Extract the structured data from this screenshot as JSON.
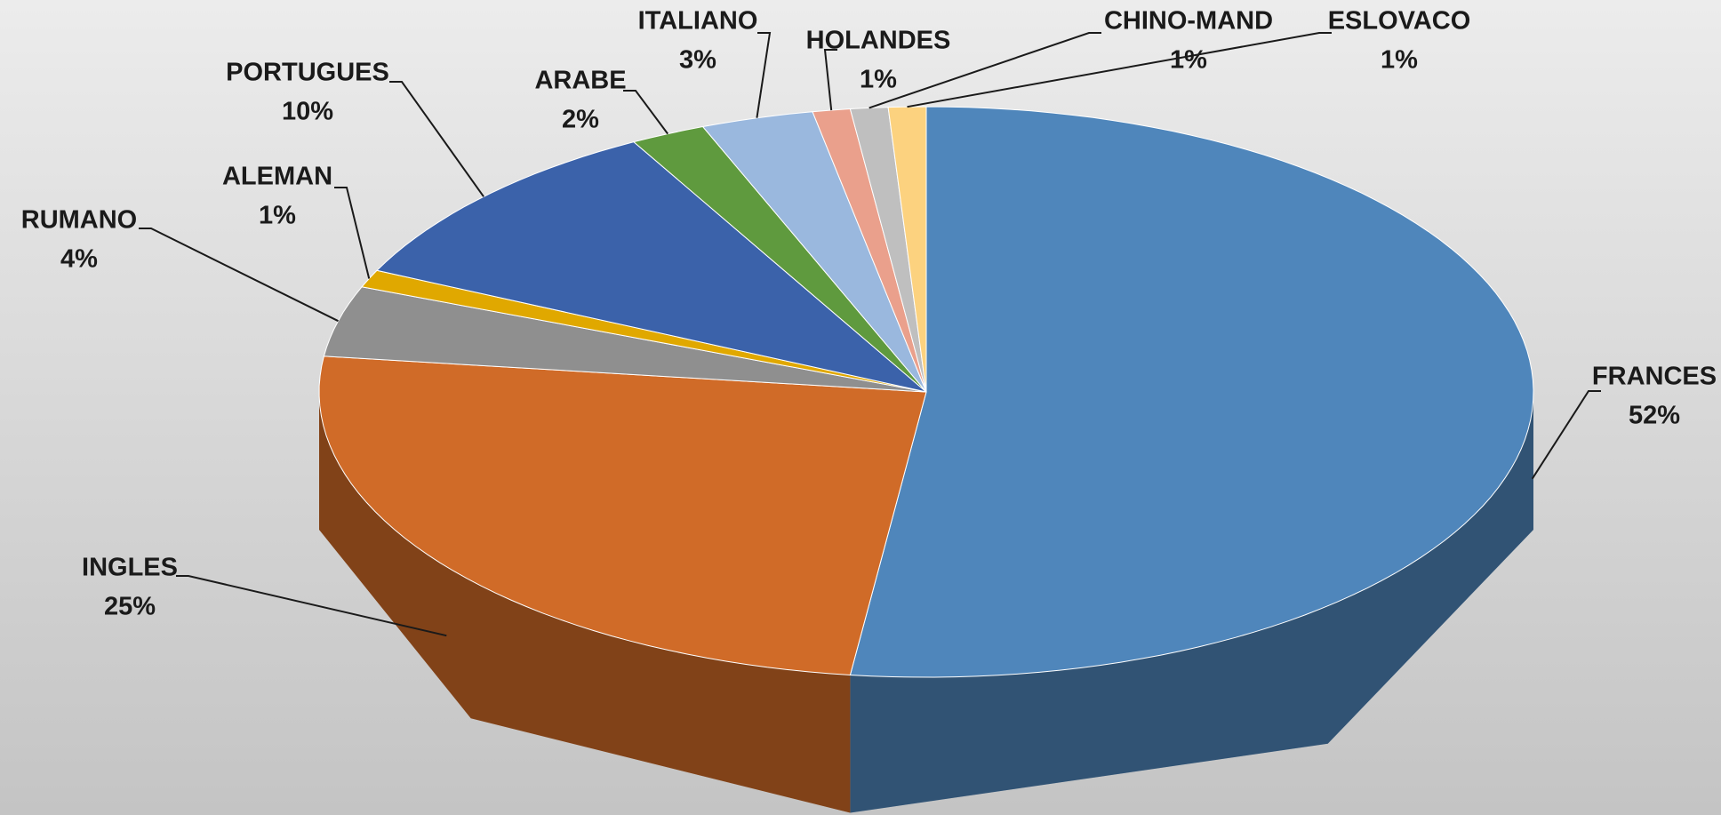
{
  "chart_data": {
    "type": "pie3d",
    "categories": [
      "FRANCES",
      "INGLES",
      "RUMANO",
      "ALEMAN",
      "PORTUGUES",
      "ARABE",
      "ITALIANO",
      "HOLANDES",
      "CHINO-MAND",
      "ESLOVACO"
    ],
    "values": [
      52,
      25,
      4,
      1,
      10,
      2,
      3,
      1,
      1,
      1
    ],
    "value_labels": [
      "52%",
      "25%",
      "4%",
      "1%",
      "10%",
      "2%",
      "3%",
      "1%",
      "1%",
      "1%"
    ],
    "colors": [
      "#4f86bb",
      "#d06b28",
      "#8f8f8f",
      "#e0a800",
      "#3b62aa",
      "#5f9a3e",
      "#9ab8de",
      "#eaa08c",
      "#bfbfbf",
      "#fcd27f"
    ]
  }
}
